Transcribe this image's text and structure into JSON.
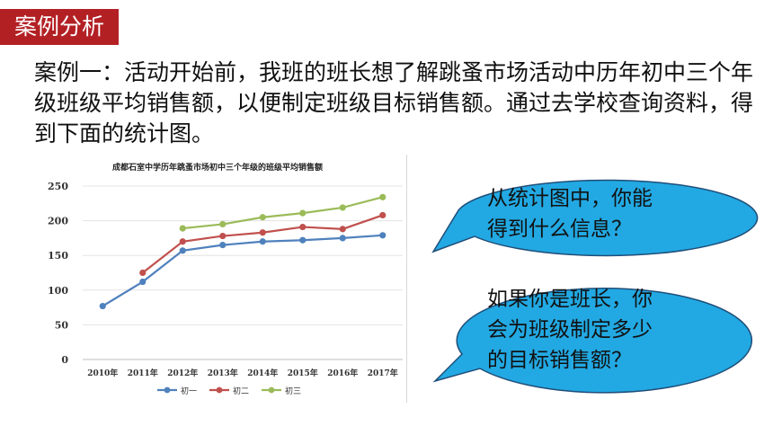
{
  "header": {
    "title": "案例分析"
  },
  "intro": {
    "text": "案例一：活动开始前，我班的班长想了解跳蚤市场活动中历年初中三个年级班级平均销售额，以便制定班级目标销售额。通过去学校查询资料，得到下面的统计图。"
  },
  "chart_data": {
    "type": "line",
    "title": "成都石室中学历年跳蚤市场初中三个年级的班级平均销售额",
    "categories": [
      "2010年",
      "2011年",
      "2012年",
      "2013年",
      "2014年",
      "2015年",
      "2016年",
      "2017年"
    ],
    "yticks": [
      "0",
      "50",
      "100",
      "150",
      "200",
      "250"
    ],
    "ylim": [
      0,
      250
    ],
    "grid": true,
    "legend_position": "bottom",
    "series": [
      {
        "name": "初一",
        "color": "#4f81bd",
        "values": [
          77,
          112,
          157,
          165,
          170,
          172,
          175,
          179
        ]
      },
      {
        "name": "初二",
        "color": "#c0504d",
        "values": [
          null,
          125,
          170,
          178,
          183,
          191,
          188,
          208
        ]
      },
      {
        "name": "初三",
        "color": "#9bbb59",
        "values": [
          null,
          null,
          189,
          195,
          205,
          211,
          219,
          234
        ]
      }
    ]
  },
  "bubbles": {
    "top": {
      "line1": "从统计图中，你能",
      "line2": "得到什么信息？"
    },
    "bottom": {
      "line1": "如果你是班长，你",
      "line2": "会为班级制定多少",
      "line3": "的目标销售额？"
    }
  },
  "colors": {
    "badge": "#b32024",
    "bubble_fill": "#22a9e3",
    "bubble_stroke": "#1f4e79"
  }
}
